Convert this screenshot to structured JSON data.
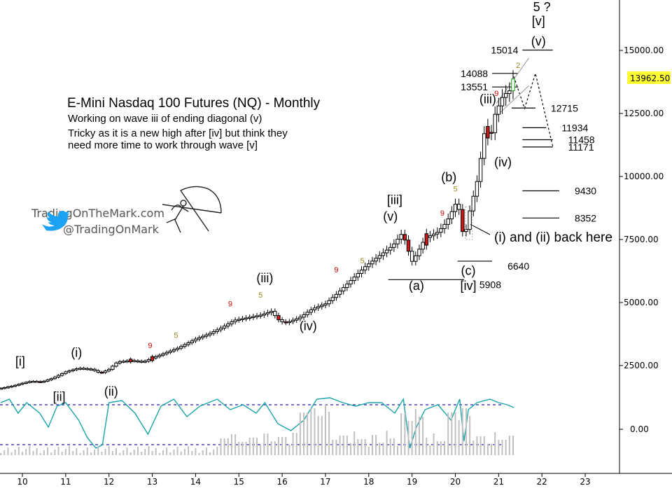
{
  "chart_data": {
    "type": "candlestick",
    "title": "E-Mini Nasdaq 100 Futures (NQ) - Monthly",
    "subtitle_lines": [
      "Working on wave iii of ending diagonal (v)",
      "Tricky as it is a new high after [iv] but think they",
      "need more time to work through wave [v]"
    ],
    "brand": {
      "site": "TradingOnTheMark.com",
      "twitter": "@TradingOnMark"
    },
    "price_tag": "13962.50",
    "y_axis": {
      "ticks": [
        "15000.00",
        "12500.00",
        "10000.00",
        "7500.00",
        "5000.00",
        "2500.00"
      ],
      "range": [
        0,
        16500
      ]
    },
    "x_axis": {
      "ticks": [
        "10",
        "11",
        "12",
        "13",
        "14",
        "15",
        "16",
        "17",
        "18",
        "19",
        "20",
        "21",
        "22",
        "23"
      ],
      "range": [
        2009.5,
        2024
      ]
    },
    "indicator_axis": {
      "ticks": [
        "0.00"
      ]
    },
    "price_path": [
      [
        2009.5,
        1600
      ],
      [
        2009.8,
        1700
      ],
      [
        2010.0,
        1800
      ],
      [
        2010.2,
        1880
      ],
      [
        2010.45,
        1850
      ],
      [
        2010.7,
        2000
      ],
      [
        2011.0,
        2250
      ],
      [
        2011.3,
        2400
      ],
      [
        2011.6,
        2350
      ],
      [
        2011.8,
        2200
      ],
      [
        2012.0,
        2350
      ],
      [
        2012.2,
        2650
      ],
      [
        2012.5,
        2700
      ],
      [
        2012.8,
        2650
      ],
      [
        2013.0,
        2800
      ],
      [
        2013.3,
        3000
      ],
      [
        2013.6,
        3200
      ],
      [
        2014.0,
        3550
      ],
      [
        2014.3,
        3750
      ],
      [
        2014.6,
        4000
      ],
      [
        2014.9,
        4300
      ],
      [
        2015.2,
        4400
      ],
      [
        2015.5,
        4500
      ],
      [
        2015.75,
        4650
      ],
      [
        2015.95,
        4250
      ],
      [
        2016.1,
        4200
      ],
      [
        2016.4,
        4400
      ],
      [
        2016.7,
        4750
      ],
      [
        2017.0,
        4950
      ],
      [
        2017.3,
        5400
      ],
      [
        2017.6,
        5900
      ],
      [
        2017.9,
        6400
      ],
      [
        2018.2,
        6800
      ],
      [
        2018.55,
        7250
      ],
      [
        2018.75,
        7700
      ],
      [
        2018.9,
        7300
      ],
      [
        2018.95,
        6500
      ],
      [
        2019.1,
        6900
      ],
      [
        2019.3,
        7550
      ],
      [
        2019.6,
        7800
      ],
      [
        2019.8,
        8200
      ],
      [
        2020.0,
        8900
      ],
      [
        2020.1,
        8650
      ],
      [
        2020.2,
        7400
      ],
      [
        2020.3,
        8400
      ],
      [
        2020.5,
        9800
      ],
      [
        2020.6,
        10900
      ],
      [
        2020.7,
        12100
      ],
      [
        2020.8,
        11400
      ],
      [
        2020.9,
        12400
      ],
      [
        2021.0,
        12800
      ],
      [
        2021.1,
        13200
      ],
      [
        2021.25,
        13400
      ],
      [
        2021.35,
        13962.5
      ]
    ],
    "down_candles": [
      2010.45,
      2011.8,
      2012.5,
      2013.0,
      2015.95,
      2016.1,
      2018.85,
      2018.95,
      2019.35,
      2020.15,
      2020.2,
      2020.75,
      2020.85
    ],
    "levels": [
      {
        "label": "15014",
        "value": 15014,
        "x0": 21.55,
        "x1": 22.25,
        "label_side": "left"
      },
      {
        "label": "14088",
        "value": 14088,
        "x0": 20.85,
        "x1": 21.45,
        "label_side": "left"
      },
      {
        "label": "13551",
        "value": 13551,
        "x0": 20.85,
        "x1": 21.45,
        "label_side": "left"
      },
      {
        "label": "12715",
        "value": 12715,
        "x0": 21.3,
        "x1": 21.85,
        "label_side": "right"
      },
      {
        "label": "11934",
        "value": 11934,
        "x0": 21.55,
        "x1": 22.1,
        "label_side": "right"
      },
      {
        "label": "11458",
        "value": 11458,
        "x0": 21.55,
        "x1": 22.25,
        "label_side": "right"
      },
      {
        "label": "11171",
        "value": 11171,
        "x0": 21.55,
        "x1": 22.25,
        "label_side": "right"
      },
      {
        "label": "9430",
        "value": 9430,
        "x0": 21.55,
        "x1": 22.4,
        "label_side": "right"
      },
      {
        "label": "8352",
        "value": 8352,
        "x0": 21.55,
        "x1": 22.4,
        "label_side": "right"
      },
      {
        "label": "6640",
        "value": 6640,
        "x0": 20.05,
        "x1": 20.85,
        "label_side": "right"
      },
      {
        "label": "5908",
        "value": 5908,
        "x0": 18.45,
        "x1": 20.2,
        "label_side": "right"
      }
    ],
    "wave_labels": [
      {
        "text": "[i]",
        "x": 2009.95,
        "y": 2500
      },
      {
        "text": "[ii]",
        "x": 2010.85,
        "y": 1100
      },
      {
        "text": "(i)",
        "x": 2011.25,
        "y": 2850
      },
      {
        "text": "(ii)",
        "x": 2012.05,
        "y": 1300
      },
      {
        "text": "(iii)",
        "x": 2015.6,
        "y": 5800
      },
      {
        "text": "(iv)",
        "x": 2016.6,
        "y": 3900
      },
      {
        "text": "[iii]",
        "x": 2018.6,
        "y": 8900
      },
      {
        "text": "(v)",
        "x": 2018.5,
        "y": 8250
      },
      {
        "text": "(a)",
        "x": 2019.1,
        "y": 5500
      },
      {
        "text": "(b)",
        "x": 2019.85,
        "y": 9800
      },
      {
        "text": "(c)",
        "x": 2020.3,
        "y": 6100
      },
      {
        "text": "[iv]",
        "x": 2020.3,
        "y": 5500
      },
      {
        "text": "(iii)",
        "x": 2020.75,
        "y": 12900
      },
      {
        "text": "(iv)",
        "x": 2021.1,
        "y": 10400
      },
      {
        "text": "(v)",
        "x": 2021.92,
        "y": 15200
      },
      {
        "text": "[v]",
        "x": 2021.92,
        "y": 16000
      },
      {
        "text": "5 ?",
        "x": 2022.0,
        "y": 16550
      }
    ],
    "annotation": "(i) and (ii) back here",
    "count_marks": [
      {
        "text": "9",
        "color": "#d00000",
        "x": 2012.95,
        "y": 3200
      },
      {
        "text": "5",
        "color": "#9a8a20",
        "x": 2013.55,
        "y": 3600
      },
      {
        "text": "9",
        "color": "#d00000",
        "x": 2014.8,
        "y": 4850
      },
      {
        "text": "5",
        "color": "#9a8a20",
        "x": 2015.5,
        "y": 5200
      },
      {
        "text": "9",
        "color": "#d00000",
        "x": 2017.25,
        "y": 6200
      },
      {
        "text": "5",
        "color": "#9a8a20",
        "x": 2017.85,
        "y": 6550
      },
      {
        "text": "9",
        "color": "#d00000",
        "x": 2019.7,
        "y": 8450
      },
      {
        "text": "5",
        "color": "#9a8a20",
        "x": 2020.0,
        "y": 9400
      },
      {
        "text": "9",
        "color": "#d00000",
        "x": 2020.95,
        "y": 13200
      },
      {
        "text": "2",
        "color": "#9a8a20",
        "x": 2021.45,
        "y": 14300
      }
    ],
    "colors": {
      "up": "#ffffff",
      "down": "#d01818",
      "green": "#1aa01a",
      "oscillator": "#1aa3a8",
      "band": "#2020b0",
      "volume": "#c0c0c0",
      "price_tag_bg": "#ffff33"
    },
    "grid": false
  }
}
